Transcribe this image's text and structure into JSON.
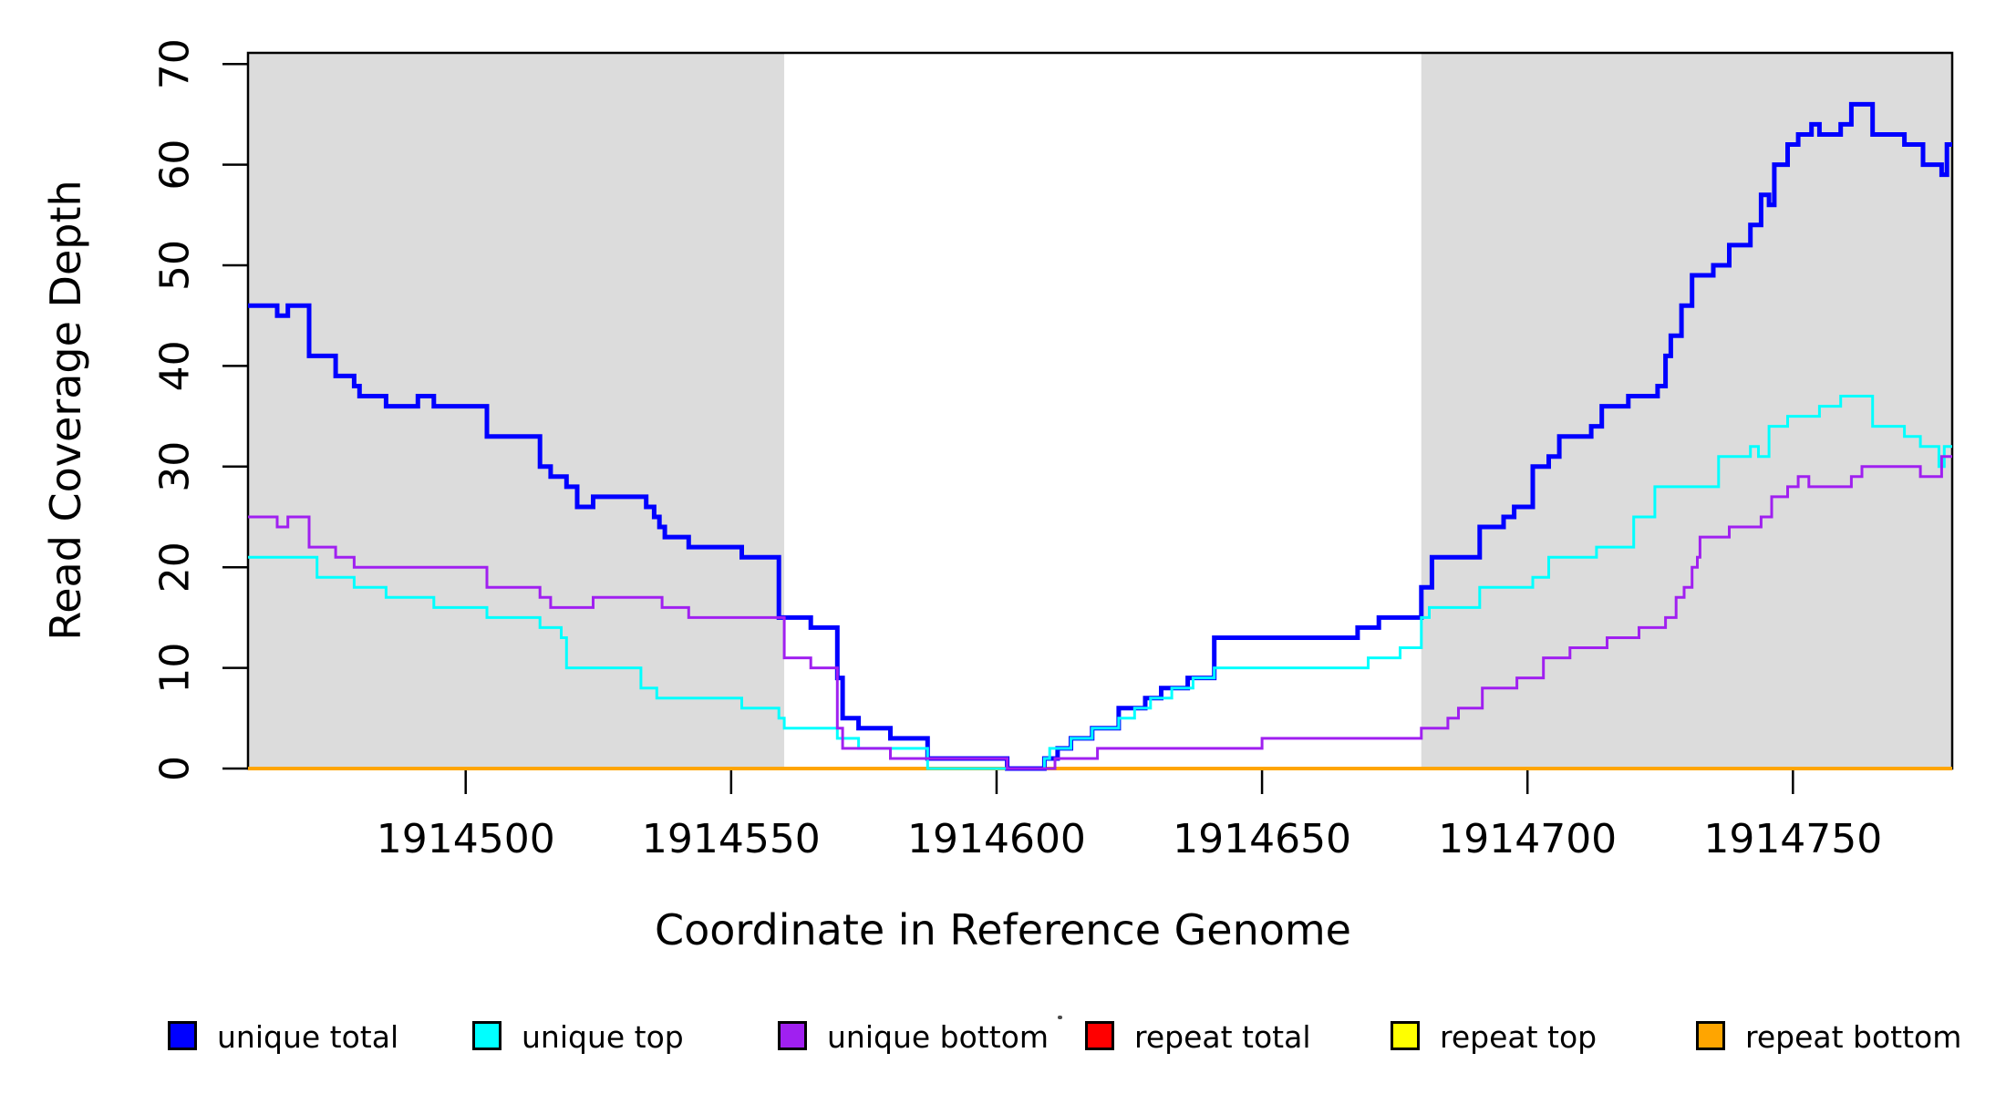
{
  "chart_data": {
    "type": "line",
    "subtype": "step-after",
    "title": "",
    "xlabel": "Coordinate in Reference Genome",
    "ylabel": "Read Coverage Depth",
    "xlim": [
      1914459,
      1914780
    ],
    "ylim": [
      0,
      70
    ],
    "x_ticks": [
      1914500,
      1914550,
      1914600,
      1914650,
      1914700,
      1914750
    ],
    "y_ticks": [
      0,
      10,
      20,
      30,
      40,
      50,
      60,
      70
    ],
    "grid": false,
    "legend_position": "bottom",
    "background_color": "#ffffff",
    "shaded_regions": [
      {
        "x0": 1914459,
        "x1": 1914560,
        "color": "#dcdcdc"
      },
      {
        "x0": 1914680,
        "x1": 1914780,
        "color": "#dcdcdc"
      }
    ],
    "series": [
      {
        "name": "repeat total",
        "color": "#ff0000",
        "line_width": 3,
        "points": [
          [
            1914459,
            0
          ]
        ]
      },
      {
        "name": "repeat top",
        "color": "#ffff00",
        "line_width": 3,
        "points": [
          [
            1914459,
            0
          ]
        ]
      },
      {
        "name": "repeat bottom",
        "color": "#ffa500",
        "line_width": 4,
        "points": [
          [
            1914459,
            0
          ]
        ]
      },
      {
        "name": "unique total",
        "color": "#0000ff",
        "line_width": 5,
        "points": [
          [
            1914459,
            46
          ],
          [
            1914464.5,
            45
          ],
          [
            1914466.5,
            46
          ],
          [
            1914470.5,
            41
          ],
          [
            1914475.5,
            39
          ],
          [
            1914479,
            38
          ],
          [
            1914480,
            37
          ],
          [
            1914485,
            36
          ],
          [
            1914491,
            37
          ],
          [
            1914494,
            36
          ],
          [
            1914504,
            33
          ],
          [
            1914514,
            30
          ],
          [
            1914516,
            29
          ],
          [
            1914519,
            28
          ],
          [
            1914521,
            26
          ],
          [
            1914524,
            27
          ],
          [
            1914534,
            26
          ],
          [
            1914535.5,
            25
          ],
          [
            1914536.5,
            24
          ],
          [
            1914537.5,
            23
          ],
          [
            1914542,
            22
          ],
          [
            1914552,
            21
          ],
          [
            1914559,
            15
          ],
          [
            1914565,
            14
          ],
          [
            1914570,
            9
          ],
          [
            1914571,
            5
          ],
          [
            1914574,
            4
          ],
          [
            1914580,
            3
          ],
          [
            1914587,
            1
          ],
          [
            1914602,
            0
          ],
          [
            1914609,
            1
          ],
          [
            1914611.5,
            2
          ],
          [
            1914614,
            3
          ],
          [
            1914618,
            4
          ],
          [
            1914623,
            6
          ],
          [
            1914628,
            7
          ],
          [
            1914631,
            8
          ],
          [
            1914636,
            9
          ],
          [
            1914641,
            13
          ],
          [
            1914668,
            14
          ],
          [
            1914672,
            15
          ],
          [
            1914680,
            18
          ],
          [
            1914682,
            21
          ],
          [
            1914691,
            24
          ],
          [
            1914695.5,
            25
          ],
          [
            1914697.5,
            26
          ],
          [
            1914701,
            30
          ],
          [
            1914704,
            31
          ],
          [
            1914706,
            33
          ],
          [
            1914712,
            34
          ],
          [
            1914714,
            36
          ],
          [
            1914719,
            37
          ],
          [
            1914724.5,
            38
          ],
          [
            1914726,
            41
          ],
          [
            1914727,
            43
          ],
          [
            1914729,
            46
          ],
          [
            1914731,
            49
          ],
          [
            1914735,
            50
          ],
          [
            1914738,
            52
          ],
          [
            1914742,
            54
          ],
          [
            1914744,
            57
          ],
          [
            1914745.5,
            56
          ],
          [
            1914746.5,
            60
          ],
          [
            1914749,
            62
          ],
          [
            1914751,
            63
          ],
          [
            1914753.5,
            64
          ],
          [
            1914755,
            63
          ],
          [
            1914759,
            64
          ],
          [
            1914761,
            66
          ],
          [
            1914765,
            63
          ],
          [
            1914771,
            62
          ],
          [
            1914774.5,
            60
          ],
          [
            1914778,
            59
          ],
          [
            1914779,
            62
          ]
        ]
      },
      {
        "name": "unique top",
        "color": "#00ffff",
        "line_width": 3,
        "points": [
          [
            1914459,
            21
          ],
          [
            1914472,
            19
          ],
          [
            1914479,
            18
          ],
          [
            1914485,
            17
          ],
          [
            1914494,
            16
          ],
          [
            1914504,
            15
          ],
          [
            1914514,
            14
          ],
          [
            1914518,
            13
          ],
          [
            1914519,
            10
          ],
          [
            1914533,
            8
          ],
          [
            1914536,
            7
          ],
          [
            1914552,
            6
          ],
          [
            1914559,
            5
          ],
          [
            1914560,
            4
          ],
          [
            1914570,
            3
          ],
          [
            1914574,
            2
          ],
          [
            1914587,
            0
          ],
          [
            1914609,
            1
          ],
          [
            1914610,
            2
          ],
          [
            1914614,
            3
          ],
          [
            1914618,
            4
          ],
          [
            1914623,
            5
          ],
          [
            1914626,
            6
          ],
          [
            1914629,
            7
          ],
          [
            1914633,
            8
          ],
          [
            1914637,
            9
          ],
          [
            1914641,
            10
          ],
          [
            1914670,
            11
          ],
          [
            1914676,
            12
          ],
          [
            1914680,
            15
          ],
          [
            1914681.5,
            16
          ],
          [
            1914691,
            18
          ],
          [
            1914701,
            19
          ],
          [
            1914704,
            21
          ],
          [
            1914713,
            22
          ],
          [
            1914720,
            25
          ],
          [
            1914724,
            28
          ],
          [
            1914736,
            31
          ],
          [
            1914742,
            32
          ],
          [
            1914743.5,
            31
          ],
          [
            1914745.5,
            34
          ],
          [
            1914749,
            35
          ],
          [
            1914755,
            36
          ],
          [
            1914759,
            37
          ],
          [
            1914765,
            34
          ],
          [
            1914771,
            33
          ],
          [
            1914774,
            32
          ],
          [
            1914777.5,
            30
          ],
          [
            1914778.5,
            32
          ]
        ]
      },
      {
        "name": "unique bottom",
        "color": "#a020f0",
        "line_width": 3,
        "points": [
          [
            1914459,
            25
          ],
          [
            1914464.5,
            24
          ],
          [
            1914466.5,
            25
          ],
          [
            1914470.5,
            22
          ],
          [
            1914475.5,
            21
          ],
          [
            1914479,
            20
          ],
          [
            1914504,
            18
          ],
          [
            1914514,
            17
          ],
          [
            1914516,
            16
          ],
          [
            1914524,
            17
          ],
          [
            1914537,
            16
          ],
          [
            1914542,
            15
          ],
          [
            1914560,
            11
          ],
          [
            1914565,
            10
          ],
          [
            1914570,
            4
          ],
          [
            1914571,
            2
          ],
          [
            1914580,
            1
          ],
          [
            1914602,
            0
          ],
          [
            1914611,
            1
          ],
          [
            1914619,
            2
          ],
          [
            1914650,
            3
          ],
          [
            1914680,
            4
          ],
          [
            1914685,
            5
          ],
          [
            1914687,
            6
          ],
          [
            1914691.5,
            8
          ],
          [
            1914698,
            9
          ],
          [
            1914703,
            11
          ],
          [
            1914708,
            12
          ],
          [
            1914715,
            13
          ],
          [
            1914721,
            14
          ],
          [
            1914726,
            15
          ],
          [
            1914728,
            17
          ],
          [
            1914729.5,
            18
          ],
          [
            1914731,
            20
          ],
          [
            1914732,
            21
          ],
          [
            1914732.5,
            23
          ],
          [
            1914738,
            24
          ],
          [
            1914744,
            25
          ],
          [
            1914746,
            27
          ],
          [
            1914749,
            28
          ],
          [
            1914751,
            29
          ],
          [
            1914753,
            28
          ],
          [
            1914761,
            29
          ],
          [
            1914763,
            30
          ],
          [
            1914774,
            29
          ],
          [
            1914778,
            31
          ]
        ]
      }
    ],
    "legend": [
      {
        "label": "unique total",
        "color": "#0000ff"
      },
      {
        "label": "unique top",
        "color": "#00ffff"
      },
      {
        "label": "unique bottom",
        "color": "#a020f0"
      },
      {
        "label": "repeat total",
        "color": "#ff0000"
      },
      {
        "label": "repeat top",
        "color": "#ffff00"
      },
      {
        "label": "repeat bottom",
        "color": "#ffa500"
      }
    ]
  },
  "axes": {
    "x_title": "Coordinate in Reference Genome",
    "y_title": "Read Coverage Depth"
  }
}
